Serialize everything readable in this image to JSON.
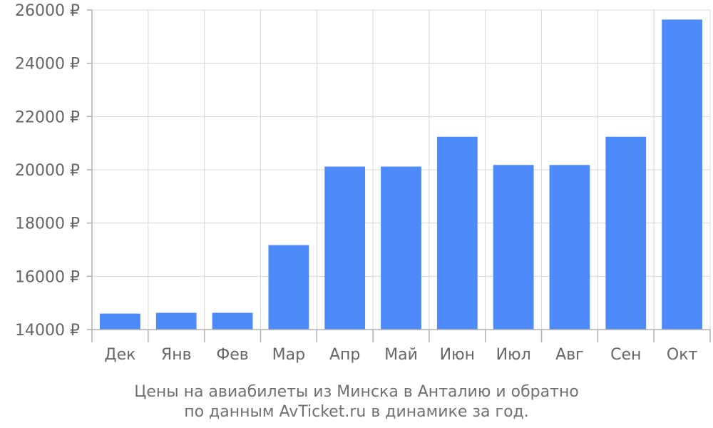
{
  "chart_data": {
    "type": "bar",
    "currency_suffix": "₽",
    "categories": [
      "Дек",
      "Янв",
      "Фев",
      "Мар",
      "Апр",
      "Май",
      "Июн",
      "Июл",
      "Авг",
      "Сен",
      "Окт"
    ],
    "values": [
      14600,
      14630,
      14630,
      17170,
      20120,
      20120,
      21240,
      20180,
      20180,
      21240,
      25640
    ],
    "ylim": [
      14000,
      26000
    ],
    "yticks": [
      14000,
      16000,
      18000,
      20000,
      22000,
      24000,
      26000
    ],
    "bar_color": "#4d8afa",
    "grid": true,
    "caption": [
      "Цены на авиабилеты из Минска в Анталию и обратно",
      "по данным AvTicket.ru в динамике за год."
    ]
  }
}
